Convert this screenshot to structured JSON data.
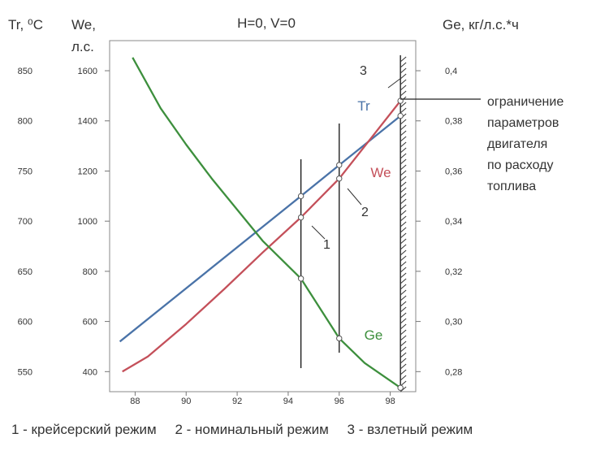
{
  "chart_data": {
    "type": "line",
    "title": "H=0, V=0",
    "xlim": [
      87,
      99
    ],
    "x_ticks": [
      "88",
      "90",
      "92",
      "94",
      "96",
      "98"
    ],
    "left_axis_1": {
      "label_line1": "Tr, ⁰C",
      "ticks": [
        "850",
        "800",
        "750",
        "700",
        "650",
        "600",
        "550"
      ],
      "range": [
        530,
        880
      ]
    },
    "left_axis_2": {
      "label_line1": "We,",
      "label_line2": "л.с.",
      "ticks": [
        "1600",
        "1400",
        "1200",
        "1000",
        "800",
        "600",
        "400"
      ],
      "range": [
        330,
        1730
      ]
    },
    "right_axis": {
      "label": "Ge, кг/л.с.*ч",
      "ticks": [
        "0,4",
        "0,38",
        "0,36",
        "0,34",
        "0,32",
        "0,30",
        "0,28"
      ],
      "range": [
        0.275,
        0.41
      ]
    },
    "series": [
      {
        "name": "Tr",
        "axis": "Tr",
        "color": "#4a73a8",
        "x": [
          87.4,
          94.5,
          96.0,
          98.4
        ],
        "y": [
          580,
          725,
          756,
          805
        ]
      },
      {
        "name": "We",
        "axis": "We",
        "color": "#c4505a",
        "x": [
          87.5,
          88.5,
          90,
          91.5,
          93,
          94.5,
          96,
          98.4
        ],
        "y": [
          410,
          470,
          600,
          740,
          885,
          1025,
          1180,
          1490
        ]
      },
      {
        "name": "Ge",
        "axis": "Ge",
        "color": "#3d8f3d",
        "x": [
          87.9,
          89,
          90,
          91,
          92,
          93,
          94.5,
          96,
          97,
          98.4
        ],
        "y": [
          0.4035,
          0.384,
          0.37,
          0.357,
          0.345,
          0.333,
          0.3185,
          0.2955,
          0.286,
          0.2765
        ]
      }
    ],
    "regime_lines": [
      {
        "label": "1",
        "x": 94.5,
        "points": [
          {
            "axis": "Tr",
            "y": 725
          },
          {
            "axis": "We",
            "y": 1025
          },
          {
            "axis": "Ge",
            "y": 0.3185
          }
        ]
      },
      {
        "label": "2",
        "x": 96.0,
        "points": [
          {
            "axis": "Tr",
            "y": 756
          },
          {
            "axis": "We",
            "y": 1180
          },
          {
            "axis": "Ge",
            "y": 0.2955
          }
        ]
      },
      {
        "label": "3",
        "x": 98.4,
        "points": [
          {
            "axis": "Tr",
            "y": 805
          },
          {
            "axis": "We",
            "y": 1490
          },
          {
            "axis": "Ge",
            "y": 0.2765
          }
        ]
      }
    ],
    "limit_note": [
      "ограничение",
      "параметров",
      "двигателя",
      "по расходу",
      "топлива"
    ]
  },
  "legend": {
    "item1": "1 - крейсерский режим",
    "item2": "2 - номинальный режим",
    "item3": "3 - взлетный режим"
  }
}
